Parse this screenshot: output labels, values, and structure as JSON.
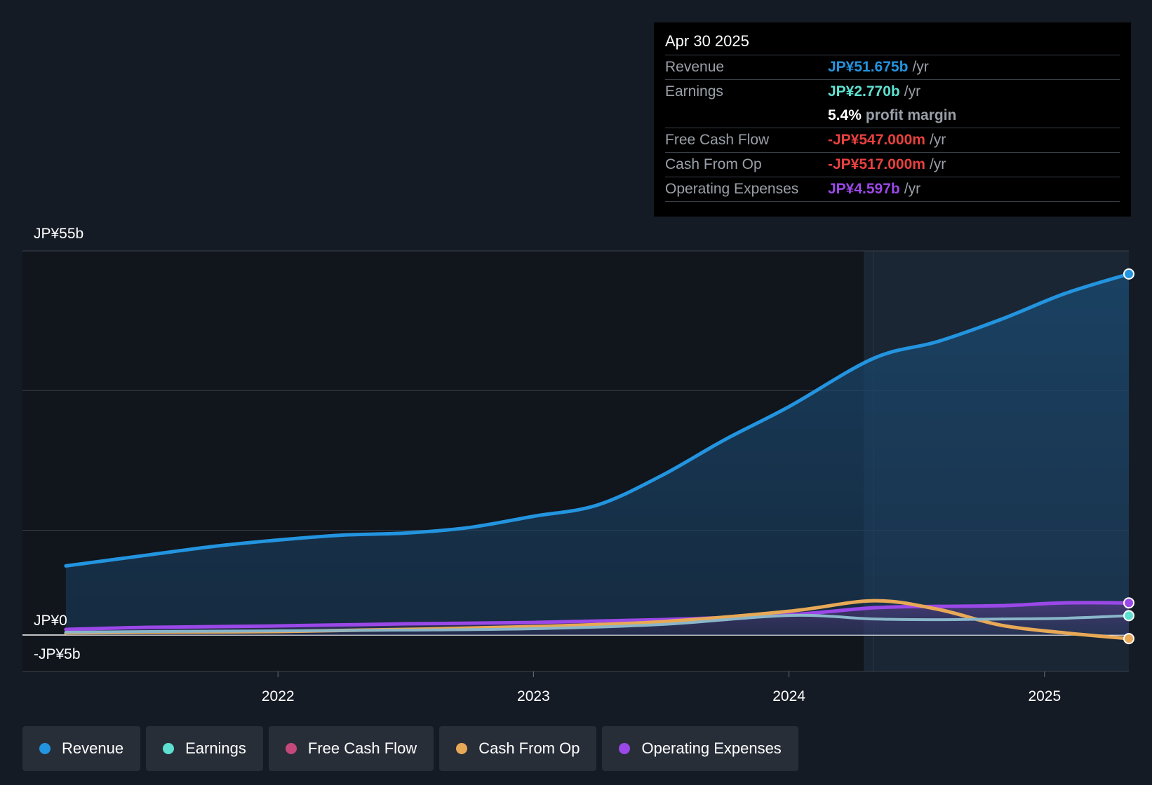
{
  "tooltip": {
    "date": "Apr 30 2025",
    "revenue": {
      "label": "Revenue",
      "value": "JP¥51.675b",
      "unit": "/yr"
    },
    "earnings": {
      "label": "Earnings",
      "value": "JP¥2.770b",
      "unit": "/yr"
    },
    "margin": {
      "value": "5.4%",
      "label": "profit margin"
    },
    "fcf": {
      "label": "Free Cash Flow",
      "value": "-JP¥547.000m",
      "unit": "/yr"
    },
    "cfo": {
      "label": "Cash From Op",
      "value": "-JP¥517.000m",
      "unit": "/yr"
    },
    "opex": {
      "label": "Operating Expenses",
      "value": "JP¥4.597b",
      "unit": "/yr"
    }
  },
  "legend": [
    {
      "label": "Revenue",
      "color": "#2394df"
    },
    {
      "label": "Earnings",
      "color": "#5ee0d0"
    },
    {
      "label": "Free Cash Flow",
      "color": "#c4487a"
    },
    {
      "label": "Cash From Op",
      "color": "#e8a956"
    },
    {
      "label": "Operating Expenses",
      "color": "#9b48e8"
    }
  ],
  "colors": {
    "revenue": "#2394df",
    "earnings": "#5ee0d0",
    "fcf": "#c4487a",
    "cfo": "#e8a956",
    "opex": "#9b48e8",
    "background": "#151b24"
  },
  "chart_data": {
    "type": "line",
    "y_labels": [
      "JP¥55b",
      "JP¥0",
      "-JP¥5b"
    ],
    "x_ticks": [
      {
        "label": "2022",
        "x": 2022.0
      },
      {
        "label": "2023",
        "x": 2023.0
      },
      {
        "label": "2024",
        "x": 2024.0
      },
      {
        "label": "2025",
        "x": 2025.0
      }
    ],
    "ylim": [
      -5,
      55
    ],
    "xlim": [
      2021.0,
      2025.33
    ],
    "forecast_start": 2024.33,
    "series": [
      {
        "key": "revenue",
        "x": [
          2021.17,
          2021.5,
          2021.75,
          2022.0,
          2022.25,
          2022.5,
          2022.75,
          2023.0,
          2023.25,
          2023.5,
          2023.75,
          2024.0,
          2024.33,
          2024.58,
          2024.83,
          2025.08,
          2025.33
        ],
        "y": [
          9.9,
          11.5,
          12.7,
          13.6,
          14.3,
          14.6,
          15.4,
          17.0,
          18.6,
          22.8,
          28.0,
          32.7,
          39.6,
          42.0,
          45.2,
          48.9,
          51.7
        ]
      },
      {
        "key": "earnings",
        "x": [
          2021.17,
          2021.5,
          2022.0,
          2022.5,
          2023.0,
          2023.5,
          2024.0,
          2024.33,
          2024.58,
          2024.83,
          2025.08,
          2025.33
        ],
        "y": [
          0.4,
          0.5,
          0.6,
          0.7,
          0.9,
          1.5,
          2.8,
          2.3,
          2.2,
          2.3,
          2.4,
          2.77
        ]
      },
      {
        "key": "cfo",
        "x": [
          2021.17,
          2021.5,
          2022.0,
          2022.5,
          2023.0,
          2023.5,
          2024.0,
          2024.33,
          2024.58,
          2024.83,
          2025.08,
          2025.33
        ],
        "y": [
          0.3,
          0.4,
          0.5,
          0.8,
          1.2,
          1.9,
          3.4,
          4.9,
          3.7,
          1.4,
          0.3,
          -0.517
        ]
      },
      {
        "key": "opex",
        "x": [
          2021.17,
          2021.5,
          2022.0,
          2022.5,
          2023.0,
          2023.5,
          2024.0,
          2024.33,
          2024.58,
          2024.83,
          2025.08,
          2025.33
        ],
        "y": [
          0.8,
          1.1,
          1.3,
          1.6,
          1.8,
          2.2,
          2.9,
          3.9,
          4.1,
          4.2,
          4.6,
          4.597
        ]
      }
    ]
  }
}
